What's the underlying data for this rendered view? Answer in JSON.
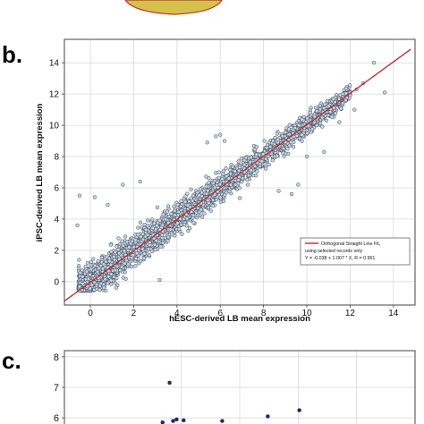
{
  "panels": {
    "b_label": "b.",
    "c_label": "c."
  },
  "colors": {
    "fit_line": "#c8282a",
    "point_fill": "#c9d6e3",
    "point_stroke": "#2a3a4a",
    "panel_c_point": "#1e2a6e",
    "top_blob": "#d4c24a",
    "top_blob_edge": "#c0303a",
    "grid": "#d9d9d9"
  },
  "chart_data": [
    {
      "type": "scatter",
      "panel": "b",
      "title": "",
      "xlabel": "hESC-derived LB mean expression",
      "ylabel": "iPSC-derived LB mean expression",
      "xlim": [
        -1.2,
        15.0
      ],
      "ylim": [
        -1.5,
        15.5
      ],
      "x_ticks": [
        0,
        2,
        4,
        6,
        8,
        10,
        12,
        14
      ],
      "y_ticks": [
        0,
        2,
        4,
        6,
        8,
        10,
        12,
        14
      ],
      "grid": true,
      "fit": {
        "intercept": -0.038,
        "slope": 1.007,
        "r": 0.961,
        "x_range": [
          -1.2,
          14.8
        ]
      },
      "legend": {
        "placement": "lower-right",
        "entry": "Orthogonal Straight Line Fit,",
        "line2": "using selected records only",
        "line3": "Y = -0.038 + 1.007 * X, R = 0.961"
      },
      "outliers": [
        [
          13.1,
          14.0
        ],
        [
          12.6,
          12.7
        ],
        [
          13.6,
          12.1
        ],
        [
          12.3,
          12.3
        ],
        [
          12.0,
          11.9
        ],
        [
          11.8,
          11.6
        ],
        [
          5.8,
          9.3
        ],
        [
          6.2,
          9.0
        ],
        [
          5.4,
          8.9
        ],
        [
          6.0,
          9.4
        ],
        [
          9.3,
          5.6
        ],
        [
          8.7,
          5.8
        ],
        [
          -0.5,
          5.5
        ],
        [
          0.2,
          5.4
        ],
        [
          1.5,
          6.2
        ],
        [
          -0.6,
          3.6
        ],
        [
          10.0,
          8.0
        ],
        [
          9.6,
          6.2
        ],
        [
          2.3,
          6.4
        ],
        [
          3.2,
          0.1
        ],
        [
          0.8,
          4.9
        ],
        [
          10.8,
          8.3
        ],
        [
          11.5,
          10.2
        ],
        [
          12.2,
          11.0
        ]
      ],
      "bulk": {
        "approx_points": 2800,
        "x_range": [
          -0.6,
          12.0
        ],
        "spread_low": 1.1,
        "spread_high": 0.45
      }
    },
    {
      "type": "scatter",
      "panel": "c",
      "title": "",
      "xlabel": "",
      "ylabel": "",
      "y_ticks": [
        6,
        7,
        8
      ],
      "visible_ylim": [
        5.8,
        8.2
      ],
      "grid": true,
      "points": [
        [
          0.3,
          7.15
        ],
        [
          0.32,
          5.95
        ],
        [
          0.31,
          5.9
        ],
        [
          0.34,
          5.92
        ],
        [
          0.28,
          5.85
        ],
        [
          0.45,
          5.9
        ],
        [
          0.58,
          6.05
        ],
        [
          0.67,
          6.25
        ]
      ]
    }
  ]
}
